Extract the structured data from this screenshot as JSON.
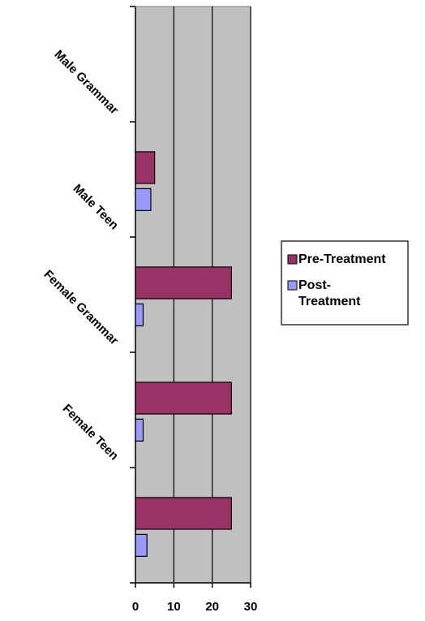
{
  "chart_data": {
    "type": "bar",
    "orientation": "horizontal",
    "categories": [
      "Male Grammar",
      "Male Teen",
      "Female Grammar",
      "Female Teen"
    ],
    "series": [
      {
        "name": "Pre-Treatment",
        "values": [
          5,
          25,
          25,
          25
        ],
        "color": "#993366"
      },
      {
        "name": "Post-Treatment",
        "values": [
          4,
          2,
          2,
          3
        ],
        "color": "#9999ff"
      }
    ],
    "legend_lines": [
      [
        "Pre-Treatment"
      ],
      [
        "Post-",
        "Treatment"
      ]
    ],
    "xlim": [
      0,
      30
    ],
    "xticks": [
      0,
      10,
      20,
      30
    ],
    "grid": true,
    "plot_background": "#c0c0c0",
    "legend_position": "right",
    "title": "",
    "xlabel": "",
    "ylabel": ""
  }
}
